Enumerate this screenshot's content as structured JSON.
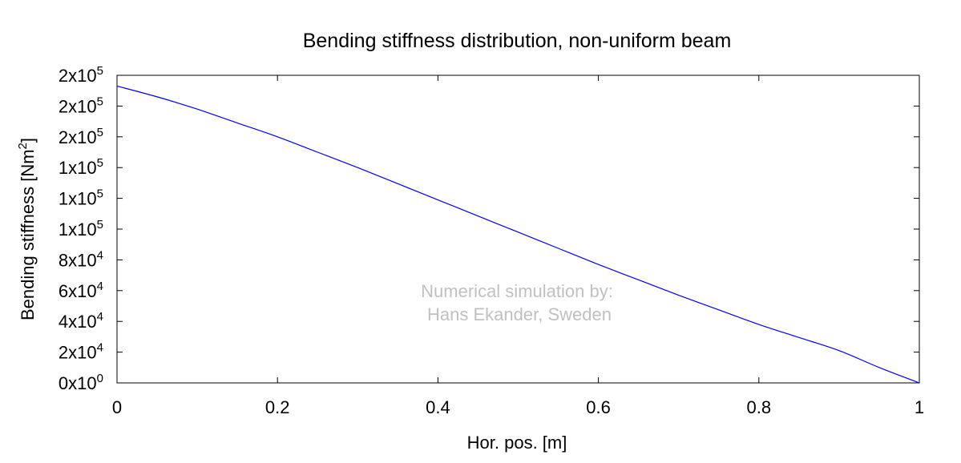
{
  "chart_data": {
    "type": "line",
    "title": "Bending stiffness distribution, non-uniform beam",
    "xlabel": "Hor. pos. [m]",
    "ylabel": "Bending stiffness [Nm",
    "ylabel_sup": "2",
    "ylabel_suffix": "]",
    "xlim": [
      0,
      1
    ],
    "ylim": [
      0,
      200000
    ],
    "grid": false,
    "legend": "none",
    "x_ticks": [
      {
        "value": 0,
        "label": "0"
      },
      {
        "value": 0.2,
        "label": "0.2"
      },
      {
        "value": 0.4,
        "label": "0.4"
      },
      {
        "value": 0.6,
        "label": "0.6"
      },
      {
        "value": 0.8,
        "label": "0.8"
      },
      {
        "value": 1,
        "label": "1"
      }
    ],
    "y_ticks": [
      {
        "value": 0,
        "mantissa": "0",
        "exponent": "0"
      },
      {
        "value": 20000,
        "mantissa": "2",
        "exponent": "4"
      },
      {
        "value": 40000,
        "mantissa": "4",
        "exponent": "4"
      },
      {
        "value": 60000,
        "mantissa": "6",
        "exponent": "4"
      },
      {
        "value": 80000,
        "mantissa": "8",
        "exponent": "4"
      },
      {
        "value": 100000,
        "mantissa": "1",
        "exponent": "5"
      },
      {
        "value": 120000,
        "mantissa": "1",
        "exponent": "5"
      },
      {
        "value": 140000,
        "mantissa": "1",
        "exponent": "5"
      },
      {
        "value": 160000,
        "mantissa": "2",
        "exponent": "5"
      },
      {
        "value": 180000,
        "mantissa": "2",
        "exponent": "5"
      },
      {
        "value": 200000,
        "mantissa": "2",
        "exponent": "5"
      }
    ],
    "series": [
      {
        "color": "#0000ff",
        "x": [
          0,
          0.05,
          0.1,
          0.15,
          0.2,
          0.25,
          0.3,
          0.35,
          0.4,
          0.45,
          0.5,
          0.55,
          0.6,
          0.65,
          0.7,
          0.75,
          0.8,
          0.85,
          0.9,
          0.95,
          1
        ],
        "values": [
          193000,
          186000,
          178000,
          169000,
          160000,
          150000,
          140000,
          129500,
          119000,
          108500,
          98000,
          87500,
          77000,
          67000,
          57000,
          47500,
          38000,
          29500,
          21000,
          10000,
          0
        ]
      }
    ]
  },
  "watermark": {
    "line1": "Numerical simulation by:",
    "line2": "Hans Ekander, Sweden",
    "color": "#c0c0c0"
  }
}
